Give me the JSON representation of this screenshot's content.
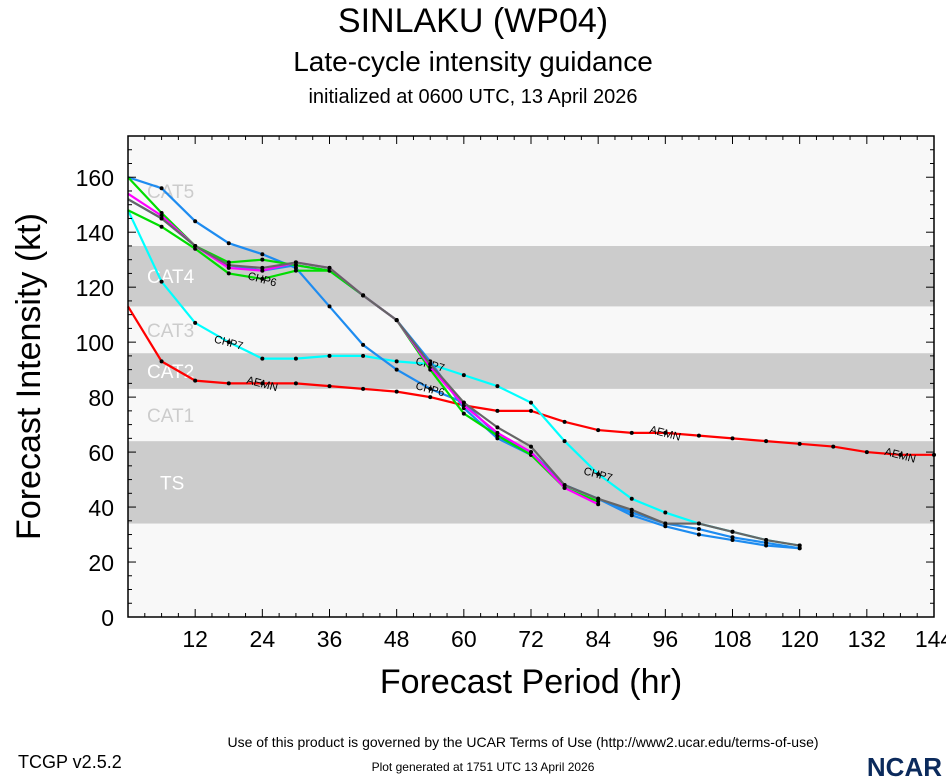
{
  "header": {
    "title": "SINLAKU (WP04)",
    "subtitle": "Late-cycle intensity guidance",
    "init": "initialized at 0600 UTC, 13 April 2026"
  },
  "footer": {
    "version": "TCGP v2.5.2",
    "terms": "Use of this product is governed by the UCAR Terms of Use (http://www2.ucar.edu/terms-of-use)",
    "generated": "Plot generated at 1751 UTC   13 April 2026",
    "logo": "NCAR"
  },
  "chart_data": {
    "type": "line",
    "xlabel": "Forecast Period (hr)",
    "ylabel": "Forecast Intensity (kt)",
    "xlim": [
      0,
      144
    ],
    "ylim": [
      0,
      175
    ],
    "xticks": [
      12,
      24,
      36,
      48,
      60,
      72,
      84,
      96,
      108,
      120,
      132,
      144
    ],
    "yticks": [
      0,
      20,
      40,
      60,
      80,
      100,
      120,
      140,
      160
    ],
    "grid": false,
    "bands": [
      {
        "label": "TS",
        "from": 34,
        "to": 64,
        "color": "#cccccc"
      },
      {
        "label": "CAT1",
        "from": 64,
        "to": 83,
        "color": "#f8f8f8"
      },
      {
        "label": "CAT2",
        "from": 83,
        "to": 96,
        "color": "#cccccc"
      },
      {
        "label": "CAT3",
        "from": 96,
        "to": 113,
        "color": "#f8f8f8"
      },
      {
        "label": "CAT4",
        "from": 113,
        "to": 135,
        "color": "#cccccc"
      },
      {
        "label": "CAT5",
        "from": 135,
        "to": 175,
        "color": "#f8f8f8"
      }
    ],
    "series": [
      {
        "label": "AEMN",
        "color": "#ff0000",
        "label_at": [
          24,
          96,
          138
        ],
        "x": [
          0,
          6,
          12,
          18,
          24,
          30,
          36,
          42,
          48,
          54,
          60,
          66,
          72,
          78,
          84,
          90,
          96,
          102,
          108,
          114,
          120,
          126,
          132,
          138,
          144
        ],
        "y": [
          113,
          93,
          86,
          85,
          85,
          85,
          84,
          83,
          82,
          80,
          77,
          75,
          75,
          71,
          68,
          67,
          67,
          66,
          65,
          64,
          63,
          62,
          60,
          59,
          59
        ]
      },
      {
        "label": "CHP7",
        "color": "#00ffff",
        "label_at": [
          18,
          54,
          84
        ],
        "x": [
          0,
          6,
          12,
          18,
          24,
          30,
          36,
          42,
          48,
          54,
          60,
          66,
          72,
          78,
          84,
          90,
          96,
          102,
          108,
          114,
          120
        ],
        "y": [
          148,
          122,
          107,
          100,
          94,
          94,
          95,
          95,
          93,
          92,
          88,
          84,
          78,
          64,
          52,
          43,
          38,
          34,
          31,
          28,
          26
        ]
      },
      {
        "label": "CHP6",
        "color": "#1e8cf0",
        "label_at": [
          54
        ],
        "x": [
          0,
          6,
          12,
          18,
          24,
          30,
          36,
          42,
          48,
          54,
          60,
          66,
          72,
          78,
          84,
          90,
          96,
          102,
          108,
          114,
          120
        ],
        "y": [
          160,
          156,
          144,
          136,
          132,
          127,
          113,
          99,
          90,
          83,
          78,
          66,
          60,
          48,
          43,
          38,
          34,
          32,
          29,
          27,
          25
        ]
      },
      {
        "label": "",
        "color": "#1e8cf0",
        "label_at": [],
        "x": [
          0,
          6,
          12,
          18,
          24,
          30,
          36,
          42,
          48,
          54,
          60,
          66,
          72,
          78,
          84,
          90,
          96,
          102,
          108,
          114,
          120
        ],
        "y": [
          152,
          145,
          135,
          128,
          126,
          128,
          126,
          117,
          108,
          93,
          76,
          65,
          59,
          48,
          43,
          37,
          33,
          30,
          28,
          26,
          25
        ]
      },
      {
        "label": "",
        "color": "#00dd00",
        "label_at": [],
        "x": [
          0,
          6,
          12,
          18,
          24,
          30,
          36,
          42,
          48,
          54,
          60,
          66,
          72,
          78,
          84
        ],
        "y": [
          160,
          147,
          135,
          129,
          130,
          128,
          126,
          117,
          108,
          90,
          74,
          66,
          59,
          47,
          42
        ]
      },
      {
        "label": "CHP6",
        "color": "#00dd00",
        "label_at": [
          24
        ],
        "x": [
          0,
          6,
          12,
          18,
          24,
          30,
          36
        ],
        "y": [
          148,
          142,
          134,
          125,
          123,
          126,
          126
        ]
      },
      {
        "label": "",
        "color": "#ff00ff",
        "label_at": [],
        "x": [
          0,
          6,
          12,
          18,
          24,
          30,
          36,
          42,
          48,
          54,
          60,
          66,
          72,
          78,
          84
        ],
        "y": [
          154,
          146,
          135,
          127,
          126,
          129,
          127,
          117,
          108,
          91,
          77,
          67,
          60,
          47,
          41
        ]
      },
      {
        "label": "",
        "color": "#666666",
        "label_at": [],
        "x": [
          0,
          6,
          12,
          18,
          24,
          30,
          36,
          42,
          48,
          54,
          60,
          66,
          72,
          78,
          84,
          90,
          96,
          102,
          108,
          114,
          120
        ],
        "y": [
          152,
          145,
          135,
          128,
          127,
          129,
          127,
          117,
          108,
          92,
          78,
          69,
          62,
          48,
          43,
          39,
          34,
          34,
          31,
          28,
          26
        ]
      }
    ]
  }
}
